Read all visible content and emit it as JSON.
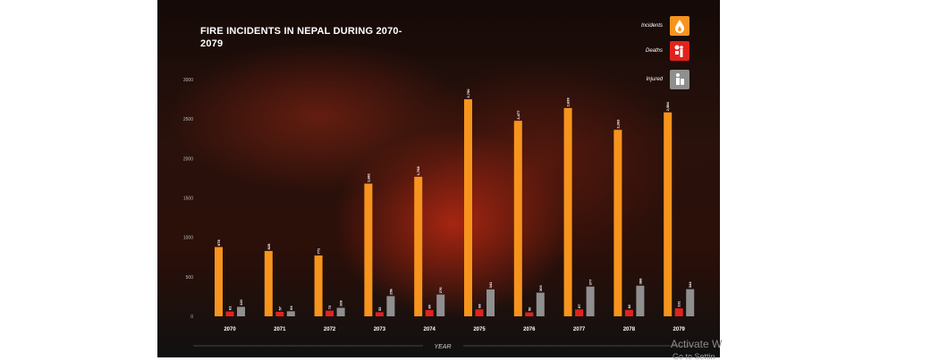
{
  "chart_data": {
    "type": "bar",
    "title": "FIRE INCIDENTS IN NEPAL DURING 2070-2079",
    "xlabel": "YEAR",
    "ylabel": "",
    "ylim": [
      0,
      3000
    ],
    "yticks": [
      0,
      500,
      1000,
      1500,
      2000,
      2500,
      3000
    ],
    "grid": false,
    "legend_position": "top-right",
    "categories": [
      "2070",
      "2071",
      "2072",
      "2073",
      "2074",
      "2075",
      "2076",
      "2077",
      "2078",
      "2079"
    ],
    "series": [
      {
        "name": "Incidents",
        "color": "#f7941d",
        "values": [
          878,
          828,
          771,
          1681,
          1768,
          2750,
          2477,
          2639,
          2363,
          2584
        ],
        "labels": [
          "878",
          "828",
          "771",
          "1,681",
          "1,768",
          "2,750",
          "2,477",
          "2,639",
          "2,363",
          "2,584"
        ]
      },
      {
        "name": "Deaths",
        "color": "#e0231d",
        "values": [
          61,
          57,
          72,
          52,
          80,
          88,
          50,
          87,
          82,
          101
        ],
        "labels": [
          "61",
          "57",
          "72",
          "52",
          "80",
          "88",
          "50",
          "87",
          "82",
          "101"
        ]
      },
      {
        "name": "Injured",
        "color": "#8f8f8f",
        "values": [
          120,
          64,
          108,
          256,
          276,
          341,
          300,
          377,
          388,
          344
        ],
        "labels": [
          "120",
          "64",
          "108",
          "256",
          "276",
          "341",
          "300",
          "377",
          "388",
          "344"
        ]
      }
    ]
  },
  "legend": [
    {
      "label": "Incidents",
      "icon": "fire-drop-icon",
      "color": "#f7941d"
    },
    {
      "label": "Deaths",
      "icon": "skull-person-icon",
      "color": "#e0231d"
    },
    {
      "label": "Injured",
      "icon": "injured-person-icon",
      "color": "#8f8f8f"
    }
  ],
  "overlay": {
    "activate": "Activate W",
    "activate_sub": "Go to Settin"
  }
}
